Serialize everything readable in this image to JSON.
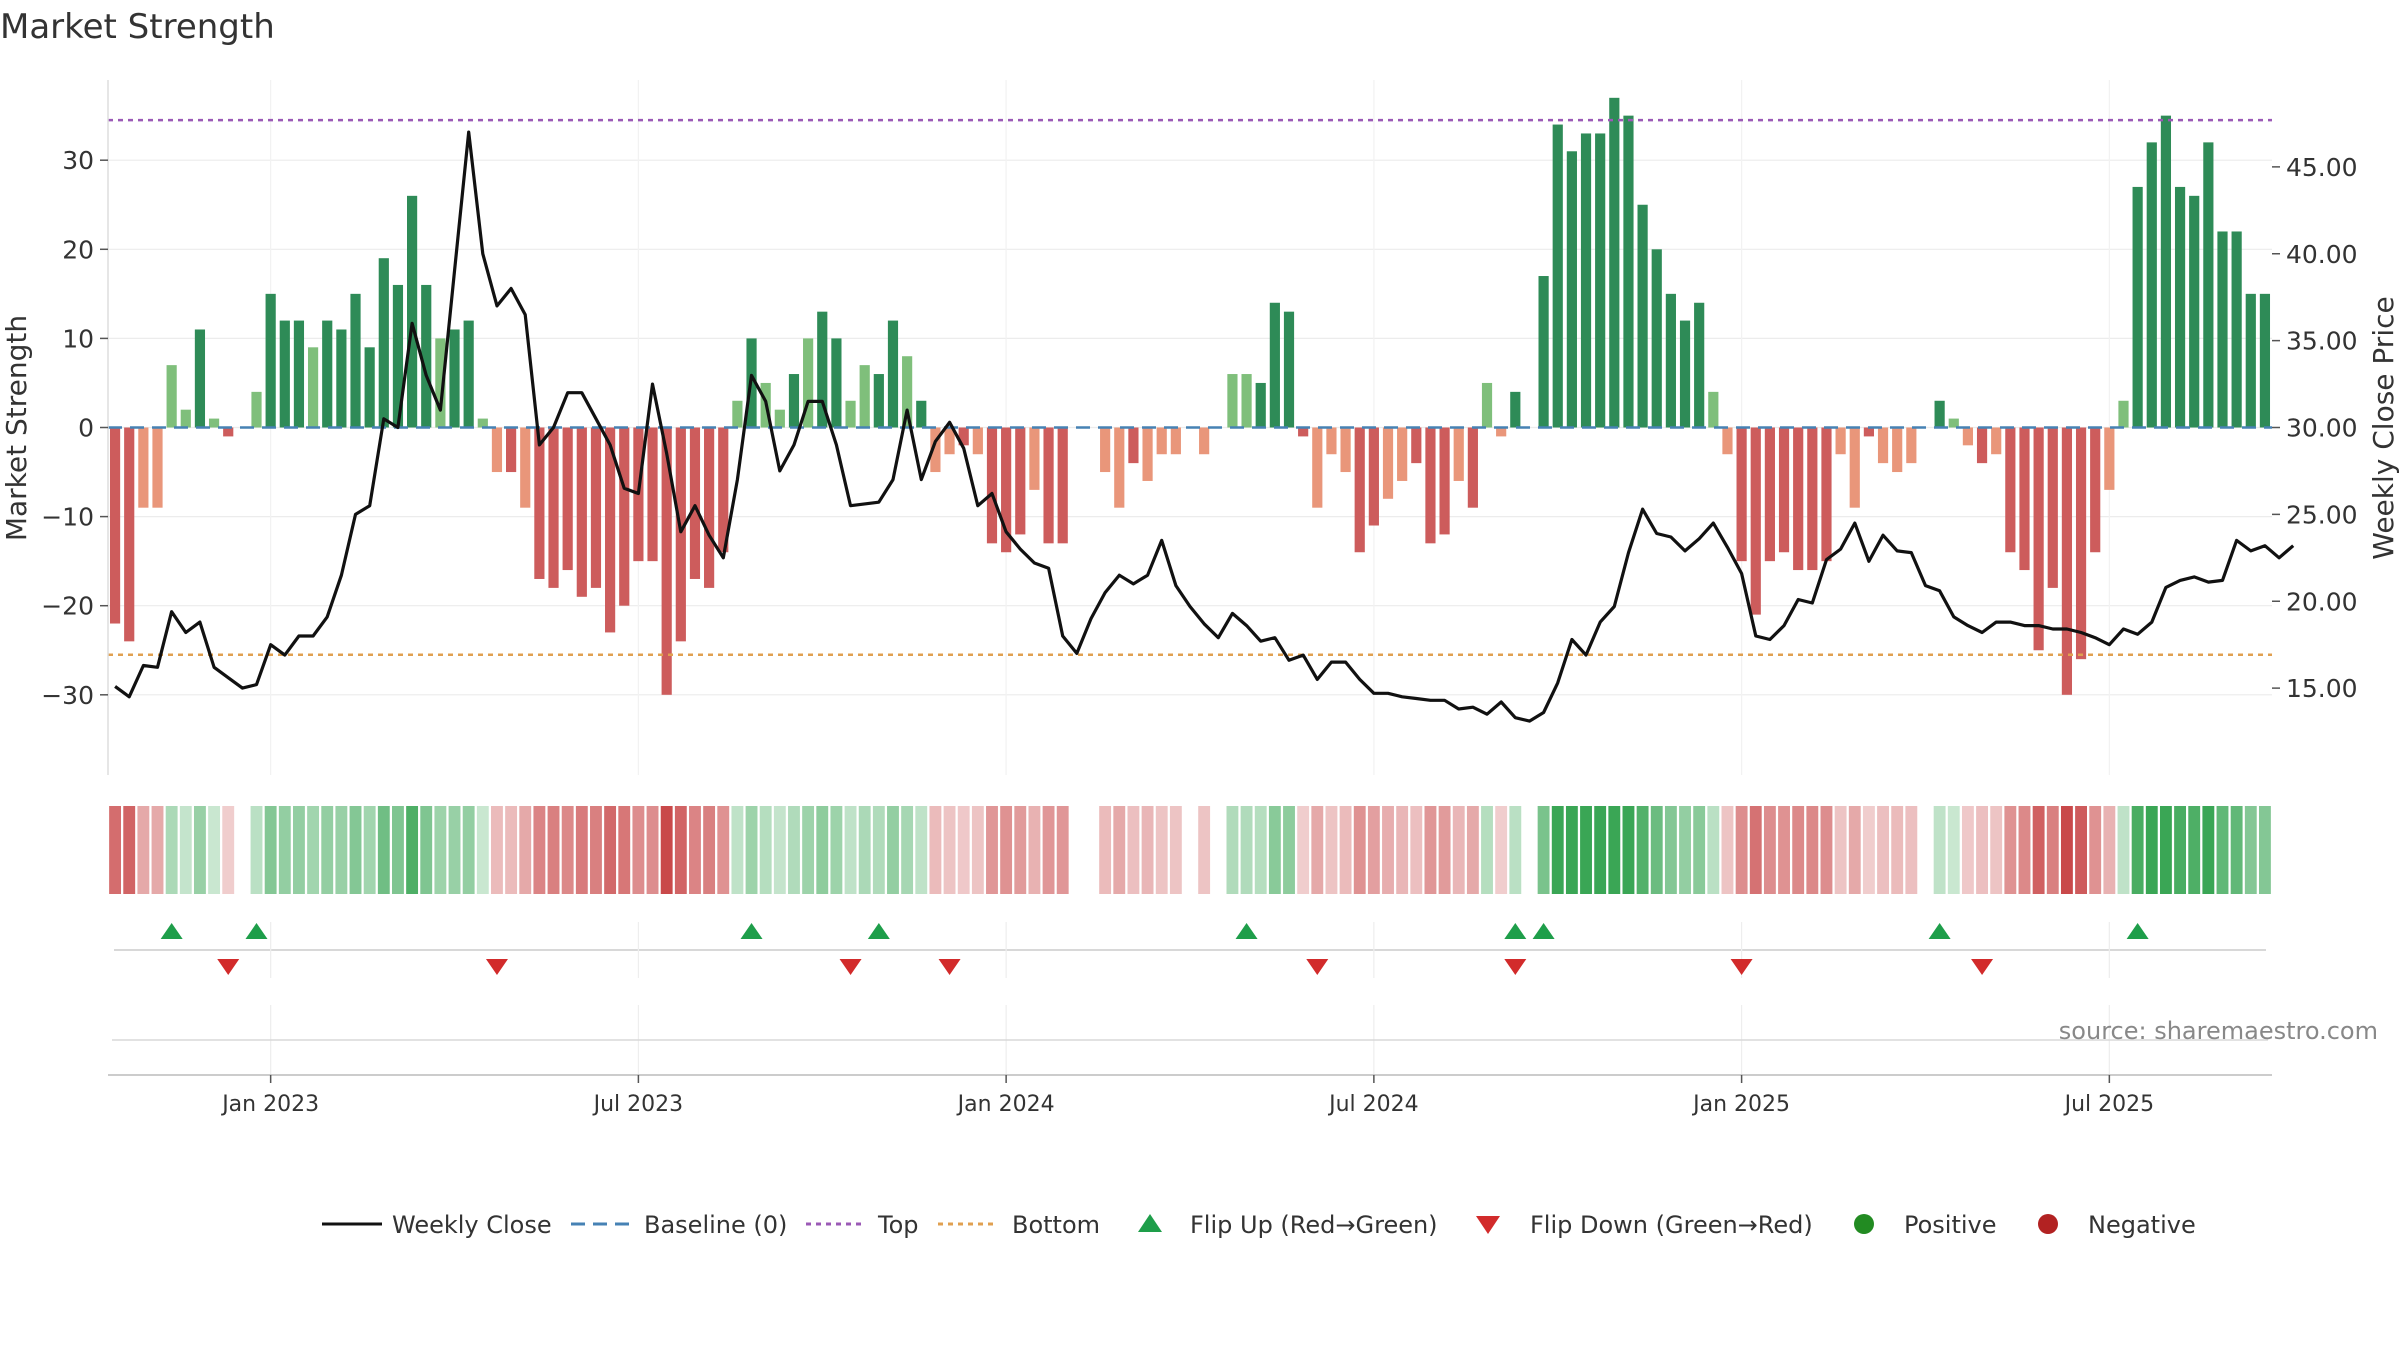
{
  "chart_data": {
    "type": "bar",
    "title": "Market Strength",
    "ylabel_left": "Market Strength",
    "ylabel_right": "Weekly Close Price",
    "source": "source: sharemaestro.com",
    "left_axis": {
      "ylim": [
        -39,
        39
      ],
      "ticks": [
        30,
        20,
        10,
        0,
        -10,
        -20,
        -30
      ],
      "tick_labels": [
        "30",
        "20",
        "10",
        "0",
        "−10",
        "−20",
        "−30"
      ]
    },
    "right_axis": {
      "ylim": [
        10.0,
        50.0
      ],
      "ticks": [
        45,
        40,
        35,
        30,
        25,
        20,
        15
      ],
      "tick_labels": [
        "45.00",
        "40.00",
        "35.00",
        "30.00",
        "25.00",
        "20.00",
        "15.00"
      ]
    },
    "x_ticks": [
      "Jan 2023",
      "Jul 2023",
      "Jan 2024",
      "Jul 2024",
      "Jan 2025",
      "Jul 2025"
    ],
    "x_tick_weeks": [
      11,
      37,
      63,
      89,
      115,
      141
    ],
    "top_level": 34.5,
    "bottom_level": -25.5,
    "strength": [
      -22,
      -24,
      -9,
      -9,
      7,
      2,
      11,
      1,
      -1,
      0,
      4,
      15,
      12,
      12,
      9,
      12,
      11,
      15,
      9,
      19,
      16,
      26,
      16,
      10,
      11,
      12,
      1,
      -5,
      -5,
      -9,
      -17,
      -18,
      -16,
      -19,
      -18,
      -23,
      -20,
      -15,
      -15,
      -30,
      -24,
      -17,
      -18,
      -14,
      3,
      10,
      5,
      2,
      6,
      10,
      13,
      10,
      3,
      7,
      6,
      12,
      8,
      3,
      -5,
      -3,
      -2,
      -3,
      -13,
      -14,
      -12,
      -7,
      -13,
      -13,
      0,
      0,
      -5,
      -9,
      -4,
      -6,
      -3,
      -3,
      0,
      -3,
      0,
      6,
      6,
      5,
      14,
      13,
      -1,
      -9,
      -3,
      -5,
      -14,
      -11,
      -8,
      -6,
      -4,
      -13,
      -12,
      -6,
      -9,
      5,
      -1,
      4,
      0,
      17,
      34,
      31,
      33,
      33,
      37,
      35,
      25,
      20,
      15,
      12,
      14,
      4,
      -3,
      -15,
      -21,
      -15,
      -14,
      -16,
      -16,
      -15,
      -3,
      -9,
      -1,
      -4,
      -5,
      -4,
      0,
      3,
      1,
      -2,
      -4,
      -3,
      -14,
      -16,
      -25,
      -18,
      -30,
      -26,
      -14,
      -7,
      3,
      27,
      32,
      35,
      27,
      26,
      32,
      22,
      22,
      15,
      15
    ],
    "close": [
      15.1,
      14.5,
      16.3,
      16.2,
      19.4,
      18.2,
      18.8,
      16.2,
      15.6,
      15.0,
      15.2,
      17.5,
      16.9,
      18.0,
      18.0,
      19.1,
      21.5,
      25.0,
      25.5,
      30.5,
      30.0,
      36.0,
      33.0,
      31.0,
      39.0,
      47.0,
      40.0,
      37.0,
      38.0,
      36.5,
      29.0,
      30.0,
      32.0,
      32.0,
      30.5,
      29.0,
      26.5,
      26.2,
      32.5,
      28.5,
      24.0,
      25.5,
      23.8,
      22.5,
      27.0,
      33.0,
      31.5,
      27.5,
      29.0,
      31.5,
      31.5,
      29.0,
      25.5,
      25.6,
      25.7,
      27.0,
      31.0,
      27.0,
      29.2,
      30.3,
      28.8,
      25.5,
      26.2,
      24.0,
      23.0,
      22.2,
      21.9,
      18.0,
      17.0,
      19.0,
      20.5,
      21.5,
      21.0,
      21.5,
      23.5,
      20.9,
      19.7,
      18.7,
      17.9,
      19.3,
      18.6,
      17.7,
      17.9,
      16.6,
      16.9,
      15.5,
      16.5,
      16.5,
      15.5,
      14.7,
      14.7,
      14.5,
      14.4,
      14.3,
      14.3,
      13.8,
      13.9,
      13.5,
      14.2,
      13.3,
      13.1,
      13.6,
      15.3,
      17.8,
      16.9,
      18.8,
      19.7,
      22.8,
      25.3,
      23.9,
      23.7,
      22.9,
      23.6,
      24.5,
      23.1,
      21.6,
      18.0,
      17.8,
      18.6,
      20.1,
      19.9,
      22.4,
      23.0,
      24.5,
      22.3,
      23.8,
      22.9,
      22.8,
      20.9,
      20.6,
      19.1,
      18.6,
      18.2,
      18.8,
      18.8,
      18.6,
      18.6,
      18.4,
      18.4,
      18.2,
      17.9,
      17.5,
      18.4,
      18.1,
      18.8,
      20.8,
      21.2,
      21.4,
      21.1,
      21.2,
      23.5,
      22.9,
      23.2,
      22.5,
      23.2
    ],
    "flip_up_weeks": [
      4,
      10,
      45,
      54,
      80,
      99,
      101,
      129,
      143
    ],
    "flip_down_weeks": [
      8,
      27,
      52,
      59,
      85,
      99,
      115,
      132
    ],
    "legend": [
      "Weekly Close",
      "Baseline (0)",
      "Top",
      "Bottom",
      "Flip Up (Red→Green)",
      "Flip Down (Green→Red)",
      "Positive",
      "Negative"
    ],
    "colors": {
      "strong_green": "#2e8b57",
      "light_green": "#7fbf7b",
      "strong_red": "#cd5c5c",
      "light_red": "#e9967a",
      "close_line": "#111111",
      "baseline": "#4682b4",
      "top": "#9b59b6",
      "bottom": "#e0a050",
      "flip_up": "#1e9e4a",
      "flip_down": "#d22b2b",
      "positive": "#228b22",
      "negative": "#b22222"
    }
  }
}
